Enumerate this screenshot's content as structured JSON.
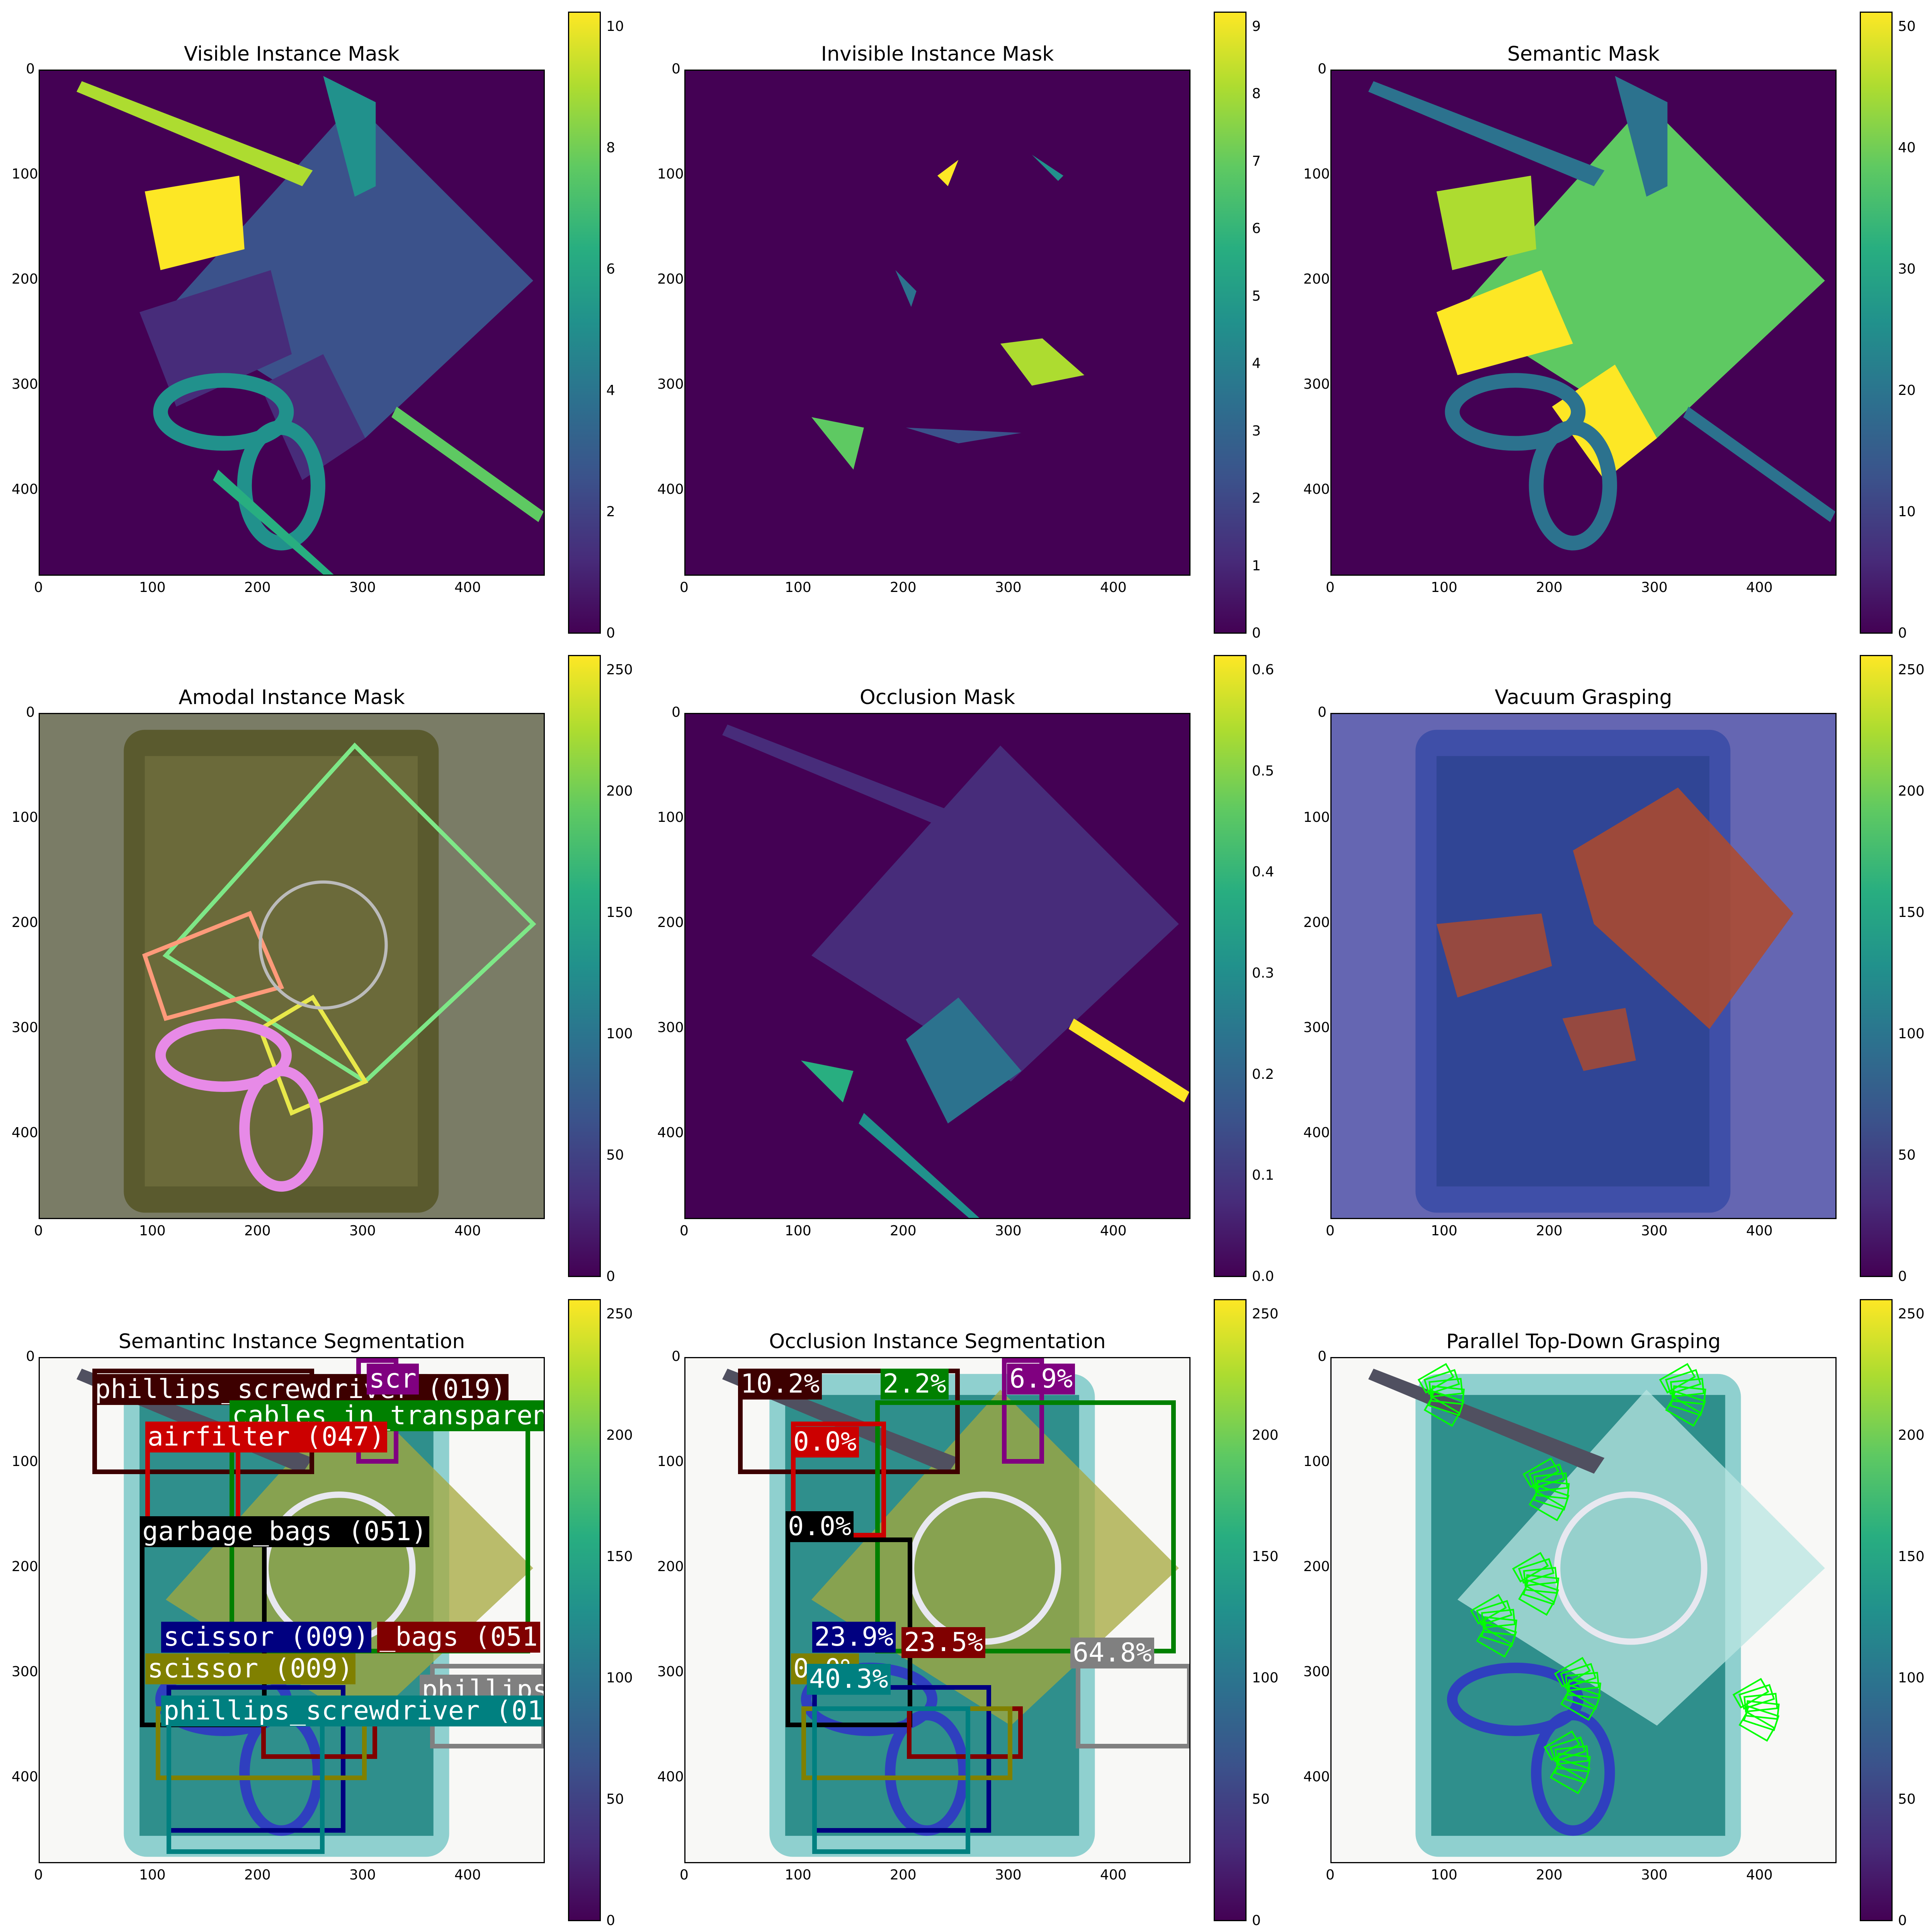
{
  "panels": [
    {
      "title": "Visible Instance Mask",
      "cbar_ticks": [
        "0",
        "2",
        "4",
        "6",
        "8",
        "10"
      ]
    },
    {
      "title": "Invisible Instance Mask",
      "cbar_ticks": [
        "0",
        "1",
        "2",
        "3",
        "4",
        "5",
        "6",
        "7",
        "8",
        "9"
      ]
    },
    {
      "title": "Semantic Mask",
      "cbar_ticks": [
        "0",
        "10",
        "20",
        "30",
        "40",
        "50"
      ]
    },
    {
      "title": "Amodal Instance Mask",
      "cbar_ticks": [
        "0",
        "50",
        "100",
        "150",
        "200",
        "250"
      ]
    },
    {
      "title": "Occlusion Mask",
      "cbar_ticks": [
        "0.0",
        "0.1",
        "0.2",
        "0.3",
        "0.4",
        "0.5",
        "0.6"
      ]
    },
    {
      "title": "Vacuum Grasping",
      "cbar_ticks": [
        "0",
        "50",
        "100",
        "150",
        "200",
        "250"
      ]
    },
    {
      "title": "Semantinc Instance Segmentation",
      "cbar_ticks": [
        "0",
        "50",
        "100",
        "150",
        "200",
        "250"
      ]
    },
    {
      "title": "Occlusion Instance Segmentation",
      "cbar_ticks": [
        "0",
        "50",
        "100",
        "150",
        "200",
        "250"
      ]
    },
    {
      "title": "Parallel Top-Down Grasping",
      "cbar_ticks": [
        "0",
        "50",
        "100",
        "150",
        "200",
        "250"
      ]
    }
  ],
  "axis_ticks": {
    "x": [
      "0",
      "100",
      "200",
      "300",
      "400"
    ],
    "y": [
      "0",
      "100",
      "200",
      "300",
      "400"
    ]
  },
  "seg_labels": [
    {
      "text": "phillips_screwdriver (019)",
      "color": "#3d0000"
    },
    {
      "text": "scr",
      "color": "#800080"
    },
    {
      "text": "cables_in_transparen",
      "color": "#008000"
    },
    {
      "text": "airfilter (047)",
      "color": "#cc0000"
    },
    {
      "text": "garbage_bags (051)",
      "color": "#000000"
    },
    {
      "text": "scissor (009)",
      "color": "#000080"
    },
    {
      "text": "_bags (051",
      "color": "#800000"
    },
    {
      "text": "scissor (009)",
      "color": "#808000"
    },
    {
      "text": "phillips",
      "color": "#808080"
    },
    {
      "text": "phillips_screwdriver (01",
      "color": "#008080"
    }
  ],
  "occ_labels": [
    {
      "text": "10.2%",
      "color": "#3d0000"
    },
    {
      "text": "2.2%",
      "color": "#008000"
    },
    {
      "text": "6.9%",
      "color": "#800080"
    },
    {
      "text": "0.0%",
      "color": "#cc0000"
    },
    {
      "text": "0.0%",
      "color": "#000000"
    },
    {
      "text": "23.9%",
      "color": "#000080"
    },
    {
      "text": "23.5%",
      "color": "#800000"
    },
    {
      "text": "64.8%",
      "color": "#808080"
    },
    {
      "text": "0.0%",
      "color": "#808000"
    },
    {
      "text": "40.3%",
      "color": "#008080"
    }
  ]
}
